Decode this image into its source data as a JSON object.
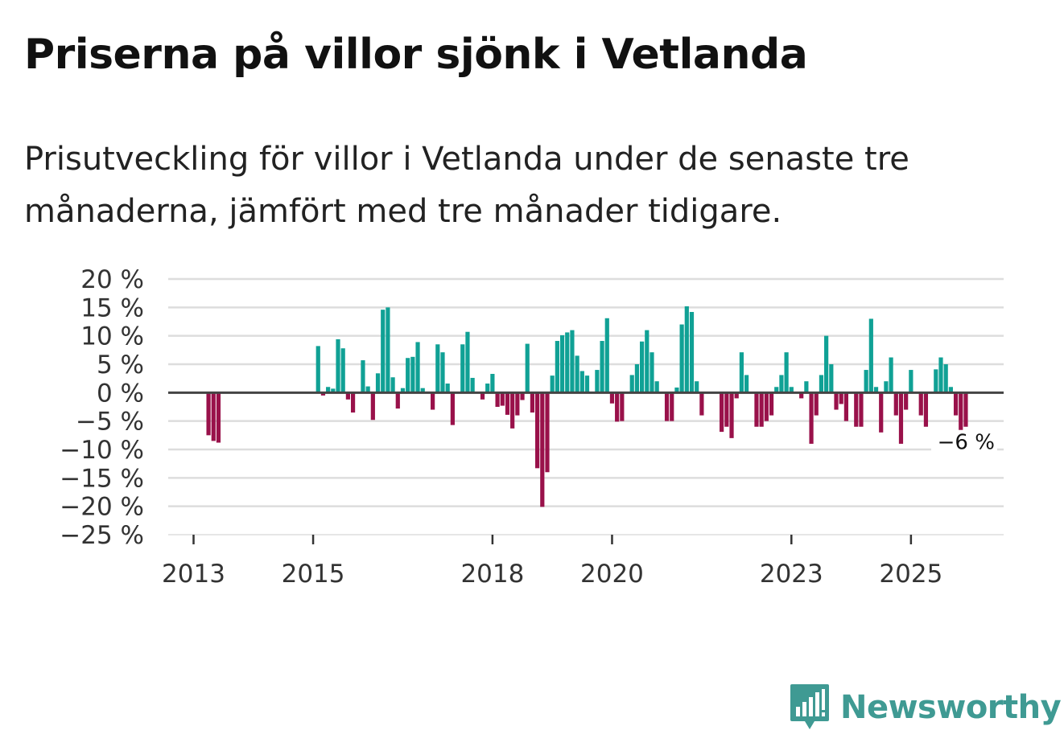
{
  "title": "Priserna på villor sjönk i Vetlanda",
  "subtitle": "Prisutveckling för villor i Vetlanda under de senaste tre månaderna, jämfört med tre månader tidigare.",
  "brand": {
    "name": "Newsworthy",
    "color": "#3f9a93"
  },
  "colors": {
    "positive": "#10a195",
    "negative": "#99114a",
    "zero_line": "#444444",
    "grid": "#dddddd"
  },
  "chart_data": {
    "type": "bar",
    "x_unit": "month",
    "start": "2013-01",
    "ylim": [
      -25,
      20
    ],
    "ytick_values": [
      20,
      15,
      10,
      5,
      0,
      -5,
      -10,
      -15,
      -20,
      -25
    ],
    "ytick_labels": [
      "20 %",
      "15 %",
      "10 %",
      "5 %",
      "0 %",
      "−5 %",
      "−10 %",
      "−15 %",
      "−20 %",
      "−25 %"
    ],
    "xticks": [
      {
        "label": "2013",
        "year": 2013
      },
      {
        "label": "2015",
        "year": 2015
      },
      {
        "label": "2018",
        "year": 2018
      },
      {
        "label": "2020",
        "year": 2020
      },
      {
        "label": "2023",
        "year": 2023
      },
      {
        "label": "2025",
        "year": 2025
      }
    ],
    "end_label": "−6 %",
    "values": [
      null,
      null,
      null,
      -7.5,
      -8.5,
      -8.8,
      null,
      null,
      null,
      null,
      null,
      null,
      null,
      null,
      null,
      null,
      null,
      null,
      null,
      null,
      null,
      null,
      null,
      null,
      0.1,
      8.2,
      -0.5,
      1,
      0.7,
      9.4,
      7.8,
      -1.2,
      -3.5,
      0.1,
      5.7,
      1.1,
      -4.8,
      3.4,
      14.6,
      15,
      2.7,
      -2.8,
      0.8,
      6.1,
      6.3,
      8.9,
      0.8,
      0.2,
      -3,
      8.5,
      7.1,
      1.6,
      -5.7,
      0.1,
      8.5,
      10.7,
      2.6,
      0.1,
      -1.2,
      1.6,
      3.3,
      -2.5,
      -2.3,
      -3.9,
      -6.3,
      -4,
      -1.3,
      8.6,
      -3.5,
      -13.3,
      -20.1,
      -14,
      3,
      9.1,
      10.1,
      10.6,
      11,
      6.5,
      3.8,
      3,
      0.1,
      4,
      9.1,
      13.1,
      -1.9,
      -5.1,
      -5,
      0.1,
      3.1,
      5,
      9,
      11,
      7.1,
      2,
      0.1,
      -5,
      -5,
      0.9,
      12,
      15.2,
      14.2,
      2,
      -4,
      null,
      null,
      null,
      -6.9,
      -6,
      -8,
      -1,
      7.1,
      3.1,
      0.1,
      -6,
      -6,
      -5,
      -4,
      1,
      3.1,
      7.1,
      1,
      0.1,
      -1,
      2,
      -9,
      -4,
      3.1,
      10,
      5,
      -3,
      -2,
      -5,
      0.1,
      -6,
      -6,
      4,
      13,
      1,
      -7,
      2,
      6.2,
      -4,
      -9,
      -3,
      4,
      0.1,
      -4,
      -6,
      0.1,
      4.1,
      6.2,
      5,
      1,
      -4,
      -7,
      -6
    ]
  }
}
